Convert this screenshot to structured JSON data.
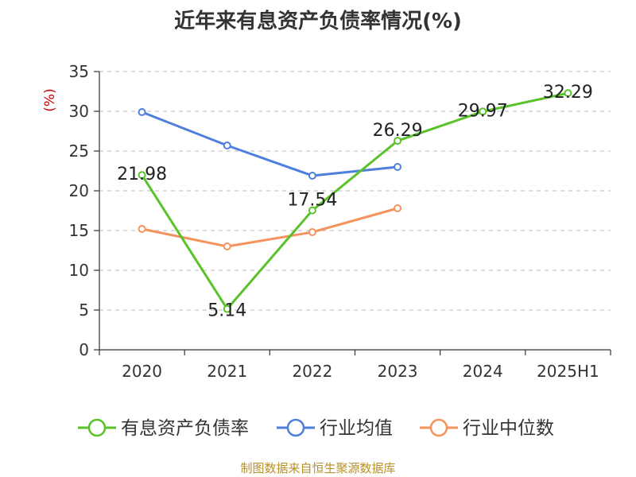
{
  "title": "近年来有息资产负债率情况(%)",
  "source": "制图数据来自恒生聚源数据库",
  "chart_data": {
    "type": "line",
    "categories": [
      "2020",
      "2021",
      "2022",
      "2023",
      "2024",
      "2025H1"
    ],
    "ylabel": "(%)",
    "ylim": [
      0,
      35
    ],
    "yticks": [
      "0",
      "5",
      "10",
      "15",
      "20",
      "25",
      "30",
      "35"
    ],
    "grid": true,
    "legend_position": "bottom",
    "series": [
      {
        "name": "有息资产负债率",
        "color": "#5ac22a",
        "values": [
          21.98,
          5.14,
          17.54,
          26.29,
          29.97,
          32.29
        ],
        "labels": [
          "21.98",
          "5.14",
          "17.54",
          "26.29",
          "29.97",
          "32.29"
        ]
      },
      {
        "name": "行业均值",
        "color": "#4f7fdc",
        "values": [
          29.9,
          25.7,
          21.9,
          23.0,
          null,
          null
        ]
      },
      {
        "name": "行业中位数",
        "color": "#f5935f",
        "values": [
          15.2,
          13.0,
          14.8,
          17.8,
          null,
          null
        ]
      }
    ]
  }
}
